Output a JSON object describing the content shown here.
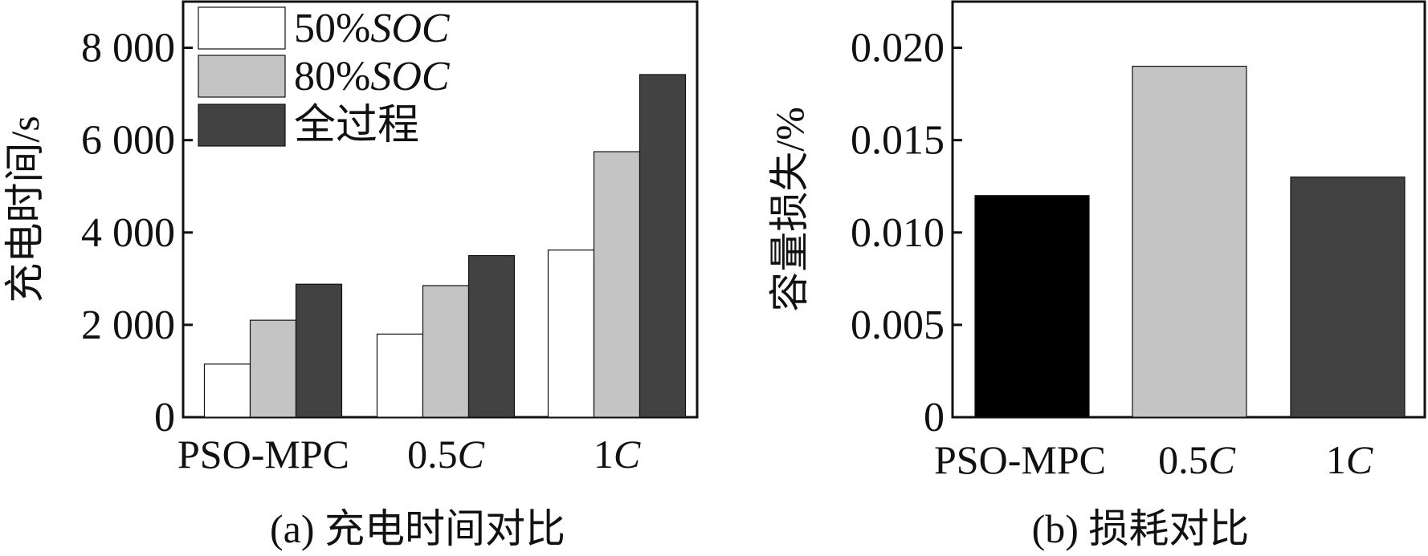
{
  "chart_data": [
    {
      "type": "bar",
      "caption": "(a) 充电时间对比",
      "ylabel": "充电时间/s",
      "xlabel": "",
      "ylim": [
        0,
        9000
      ],
      "yticks": [
        0,
        2000,
        4000,
        6000,
        8000
      ],
      "ytick_labels": [
        "0",
        "2 000",
        "4 000",
        "6 000",
        "8 000"
      ],
      "categories": [
        {
          "main": "PSO-MPC",
          "ital": ""
        },
        {
          "main": "0.5",
          "ital": "C"
        },
        {
          "main": "1",
          "ital": "C"
        }
      ],
      "legend_position": "top-left",
      "series": [
        {
          "name": "50%",
          "name_ital": "SOC",
          "color": "#ffffff",
          "values": [
            1150,
            1800,
            3620
          ]
        },
        {
          "name": "80%",
          "name_ital": "SOC",
          "color": "#c4c4c4",
          "values": [
            2100,
            2850,
            5750
          ]
        },
        {
          "name": "全过程",
          "name_ital": "",
          "color": "#424242",
          "values": [
            2880,
            3500,
            7420
          ]
        }
      ]
    },
    {
      "type": "bar",
      "caption": "(b) 损耗对比",
      "ylabel": "容量损失/%",
      "xlabel": "",
      "ylim": [
        0,
        0.0225
      ],
      "yticks": [
        0,
        0.005,
        0.01,
        0.015,
        0.02
      ],
      "ytick_labels": [
        "0",
        "0.005",
        "0.010",
        "0.015",
        "0.020"
      ],
      "categories": [
        {
          "main": "PSO-MPC",
          "ital": ""
        },
        {
          "main": "0.5",
          "ital": "C"
        },
        {
          "main": "1",
          "ital": "C"
        }
      ],
      "bar_colors": [
        "#000000",
        "#c4c4c4",
        "#424242"
      ],
      "values": [
        0.012,
        0.019,
        0.013
      ]
    }
  ]
}
